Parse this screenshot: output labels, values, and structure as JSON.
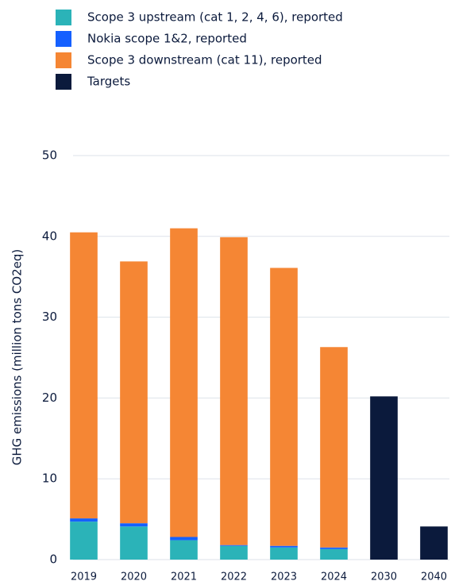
{
  "chart_data": {
    "type": "stacked_bar",
    "categories": [
      "2019",
      "2020",
      "2021",
      "2022",
      "2023",
      "2024",
      "2030",
      "2040"
    ],
    "series": [
      {
        "name": "Scope 3 upstream (cat 1, 2, 4, 6), reported",
        "color": "#2bb3b8",
        "values": [
          4.7,
          4.1,
          2.4,
          1.7,
          1.5,
          1.3,
          null,
          null
        ]
      },
      {
        "name": "Nokia scope 1&2, reported",
        "color": "#1560ff",
        "values": [
          0.4,
          0.4,
          0.4,
          0.1,
          0.2,
          0.2,
          null,
          null
        ]
      },
      {
        "name": "Scope 3 downstream (cat 11), reported",
        "color": "#f58634",
        "values": [
          35.4,
          32.4,
          38.2,
          38.1,
          34.4,
          24.8,
          null,
          null
        ]
      },
      {
        "name": "Targets",
        "color": "#0b1a3c",
        "values": [
          null,
          null,
          null,
          null,
          null,
          null,
          20.2,
          4.1
        ]
      }
    ],
    "y_label": "GHG emissions (million tons CO2eq)",
    "ylim": [
      0,
      50
    ],
    "yticks": [
      0,
      10,
      20,
      30,
      40,
      50
    ],
    "grid": true
  }
}
